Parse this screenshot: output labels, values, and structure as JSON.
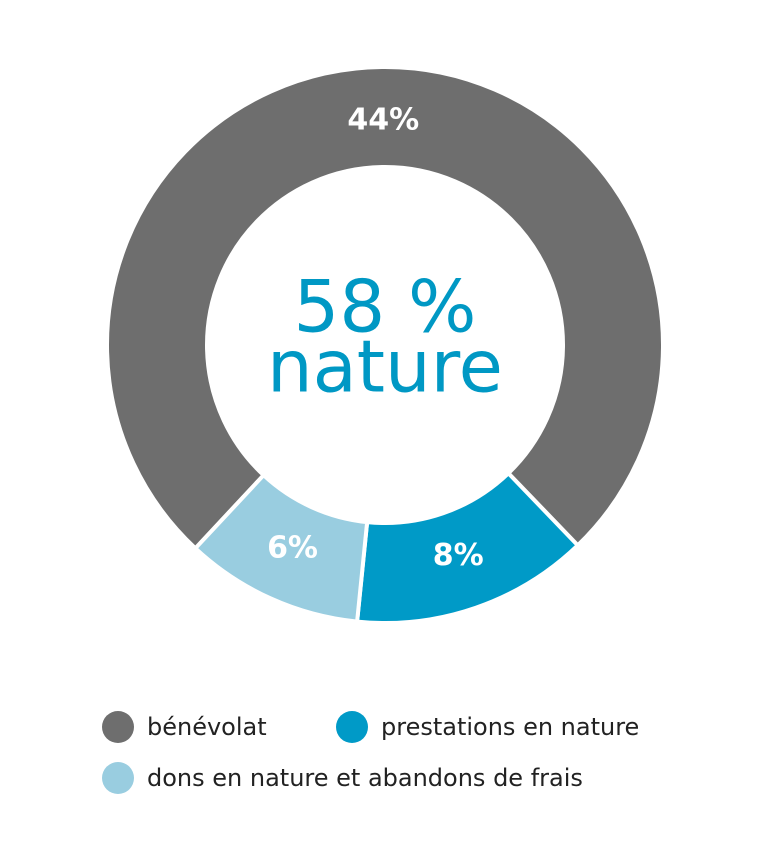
{
  "chart_data": {
    "type": "donut",
    "center_text": "58 %",
    "center_subtext": "nature",
    "categories": [
      "bénévolat",
      "prestations en nature",
      "dons en nature et abandons de frais"
    ],
    "values": [
      44,
      8,
      6
    ],
    "value_labels": [
      "44%",
      "8%",
      "6%"
    ],
    "colors": [
      "#6e6e6e",
      "#009ac7",
      "#99cde0"
    ],
    "legend": "bottom"
  }
}
